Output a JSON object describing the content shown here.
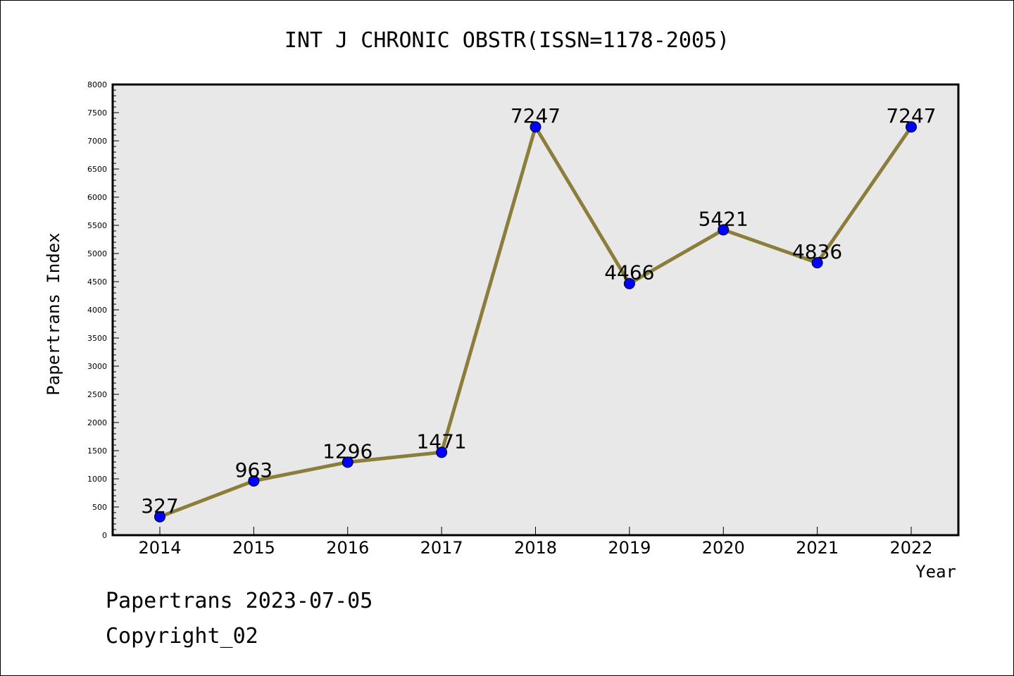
{
  "chart_data": {
    "type": "line",
    "title": "INT J CHRONIC OBSTR(ISSN=1178-2005)",
    "xlabel": "Year",
    "ylabel": "Papertrans Index",
    "categories": [
      "2014",
      "2015",
      "2016",
      "2017",
      "2018",
      "2019",
      "2020",
      "2021",
      "2022"
    ],
    "values": [
      327,
      963,
      1296,
      1471,
      7247,
      4466,
      5421,
      4836,
      7247
    ],
    "data_labels": [
      "327",
      "963",
      "1296",
      "1471",
      "7247",
      "4466",
      "5421",
      "4836",
      "7247"
    ],
    "ylim": [
      0,
      8000
    ],
    "yticks": [
      0,
      500,
      1000,
      1500,
      2000,
      2500,
      3000,
      3500,
      4000,
      4500,
      5000,
      5500,
      6000,
      6500,
      7000,
      7500,
      8000
    ],
    "grid": false,
    "plot_background": "#e8e8e8",
    "line_color": "#8b7d3a",
    "marker_color": "#0000ff"
  },
  "footer": {
    "line1": "Papertrans 2023-07-05",
    "line2": "Copyright_02"
  }
}
